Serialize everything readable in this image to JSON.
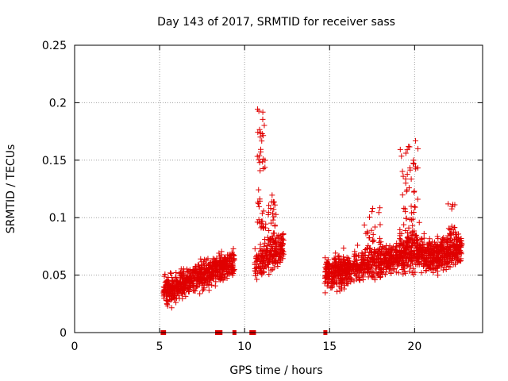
{
  "chart_data": {
    "type": "scatter",
    "title": "Day 143 of 2017, SRMTID for receiver sass",
    "xlabel": "GPS time / hours",
    "ylabel": "SRMTID / TECUs",
    "xlim": [
      0,
      24
    ],
    "ylim": [
      0,
      0.25
    ],
    "grid": true,
    "xticks": [
      0,
      5,
      10,
      15,
      20
    ],
    "yticks": [
      0,
      0.05,
      0.1,
      0.15,
      0.2,
      0.25
    ],
    "xtick_labels": [
      "0",
      "5",
      "10",
      "15",
      "20"
    ],
    "ytick_labels": [
      "0",
      "0.05",
      "0.1",
      "0.15",
      "0.2",
      "0.25"
    ],
    "marker": "+",
    "marker_color": "#e00000",
    "series": [
      {
        "name": "SRMTID",
        "segments": [
          {
            "x_start": 5.2,
            "x_end": 9.4,
            "y_base_start": 0.035,
            "y_base_end": 0.062,
            "spread": 0.012,
            "count": 650
          },
          {
            "x_start": 10.6,
            "x_end": 12.3,
            "y_base_start": 0.06,
            "y_base_end": 0.075,
            "spread": 0.014,
            "count": 220
          },
          {
            "x_start": 14.7,
            "x_end": 18.6,
            "y_base_start": 0.05,
            "y_base_end": 0.065,
            "spread": 0.013,
            "count": 600
          },
          {
            "x_start": 18.6,
            "x_end": 20.6,
            "y_base_start": 0.065,
            "y_base_end": 0.07,
            "spread": 0.014,
            "count": 320
          },
          {
            "x_start": 20.6,
            "x_end": 22.8,
            "y_base_start": 0.065,
            "y_base_end": 0.075,
            "spread": 0.014,
            "count": 380
          }
        ],
        "bursts": [
          {
            "x_center": 11.0,
            "x_width": 0.5,
            "y_min": 0.09,
            "y_max": 0.2,
            "count": 45
          },
          {
            "x_center": 11.6,
            "x_width": 0.5,
            "y_min": 0.08,
            "y_max": 0.12,
            "count": 30
          },
          {
            "x_center": 19.7,
            "x_width": 1.2,
            "y_min": 0.08,
            "y_max": 0.168,
            "count": 70
          },
          {
            "x_center": 17.5,
            "x_width": 1.0,
            "y_min": 0.07,
            "y_max": 0.11,
            "count": 25
          },
          {
            "x_center": 22.2,
            "x_width": 0.6,
            "y_min": 0.08,
            "y_max": 0.115,
            "count": 15
          }
        ]
      }
    ],
    "zero_markers_x": [
      5.18,
      5.26,
      8.38,
      8.48,
      8.58,
      9.4,
      10.4,
      10.55,
      14.75
    ]
  }
}
